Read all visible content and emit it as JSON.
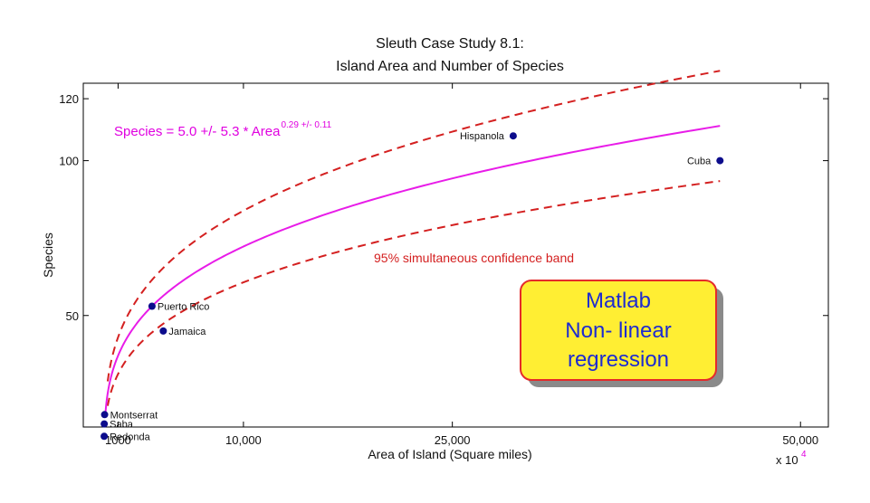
{
  "chart_data": {
    "type": "scatter",
    "title": "Sleuth Case Study 8.1:",
    "subtitle": "Island Area and Number of Species",
    "xlabel": "Area of Island (Square miles)",
    "ylabel": "Species",
    "x_multiplier_label": "x 10",
    "x_multiplier_exponent": "4",
    "x_ticks": [
      {
        "value": 1000,
        "label": "1000"
      },
      {
        "value": 10000,
        "label": "10,000"
      },
      {
        "value": 25000,
        "label": "25,000"
      },
      {
        "value": 50000,
        "label": "50,000"
      }
    ],
    "y_ticks": [
      {
        "value": 50,
        "label": "50"
      },
      {
        "value": 100,
        "label": "100"
      },
      {
        "value": 120,
        "label": "120"
      }
    ],
    "xlim": [
      -1500,
      52000
    ],
    "ylim": [
      14,
      125
    ],
    "grid": false,
    "points": [
      {
        "name": "Cuba",
        "x": 44218,
        "y": 100
      },
      {
        "name": "Hispanola",
        "x": 29371,
        "y": 108
      },
      {
        "name": "Jamaica",
        "x": 4244,
        "y": 45
      },
      {
        "name": "Puerto Rico",
        "x": 3435,
        "y": 53
      },
      {
        "name": "Montserrat",
        "x": 32,
        "y": 18
      },
      {
        "name": "Saba",
        "x": 5,
        "y": 15
      },
      {
        "name": "Redonda",
        "x": 1,
        "y": 11
      }
    ],
    "fit": {
      "a": 5.0,
      "b": 0.29,
      "x_start": 70,
      "x_end": 44218
    },
    "band": {
      "upper_factor": 1.16,
      "lower_factor": 0.84,
      "x_start": 250,
      "x_end": 44218
    },
    "equation": {
      "text": "Species = 5.0 +/- 5.3 * Area",
      "exponent": "0.29 +/- 0.11"
    },
    "band_label": "95% simultaneous confidence band",
    "colors": {
      "fit": "#e81ce8",
      "band": "#d42020",
      "points": "#0c0c8c",
      "callout_fill": "#ffee33",
      "callout_border": "#e52a2a",
      "callout_text": "#1d2bd1",
      "callout_shadow": "#8a8a8a"
    },
    "callout": {
      "lines": [
        "Matlab",
        "Non- linear",
        "regression"
      ]
    }
  }
}
